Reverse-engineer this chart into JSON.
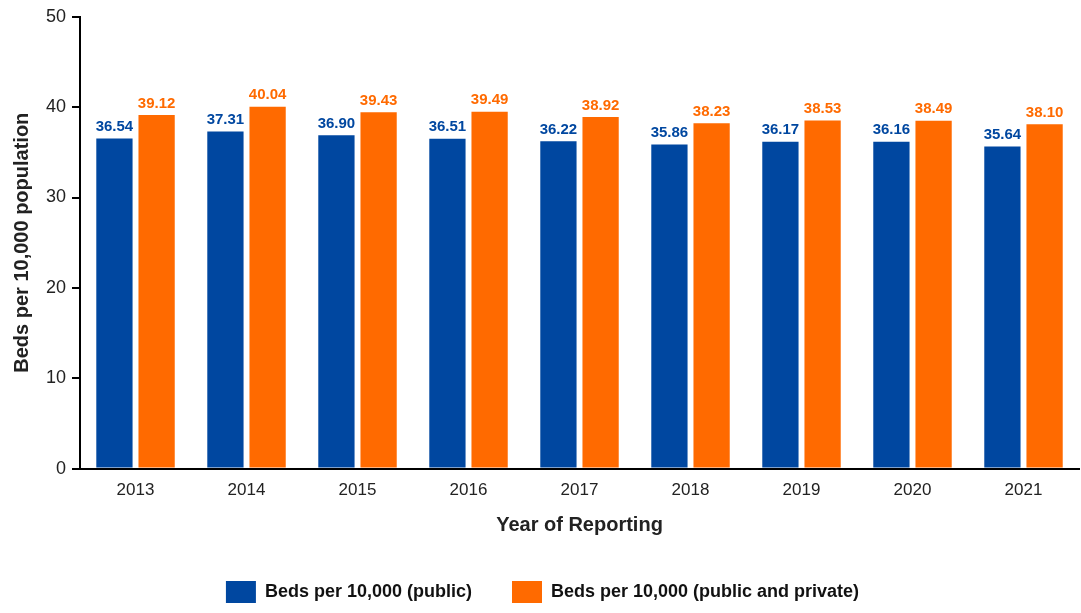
{
  "chart_data": {
    "type": "bar",
    "xlabel": "Year of Reporting",
    "ylabel": "Beds per 10,000 population",
    "categories": [
      "2013",
      "2014",
      "2015",
      "2016",
      "2017",
      "2018",
      "2019",
      "2020",
      "2021"
    ],
    "series": [
      {
        "name": "Beds per 10,000 (public)",
        "color": "#0047a0",
        "values": [
          36.54,
          37.31,
          36.9,
          36.51,
          36.22,
          35.86,
          36.17,
          36.16,
          35.64
        ],
        "value_labels": [
          "36.54",
          "37.31",
          "36.90",
          "36.51",
          "36.22",
          "35.86",
          "36.17",
          "36.16",
          "35.64"
        ]
      },
      {
        "name": "Beds per 10,000 (public and private)",
        "color": "#ff6a00",
        "values": [
          39.12,
          40.04,
          39.43,
          39.49,
          38.92,
          38.23,
          38.53,
          38.49,
          38.1
        ],
        "value_labels": [
          "39.12",
          "40.04",
          "39.43",
          "39.49",
          "38.92",
          "38.23",
          "38.53",
          "38.49",
          "38.10"
        ]
      }
    ],
    "ylim": [
      0,
      50
    ],
    "yticks": [
      0,
      10,
      20,
      30,
      40,
      50
    ],
    "grid": false,
    "legend": "bottom"
  }
}
